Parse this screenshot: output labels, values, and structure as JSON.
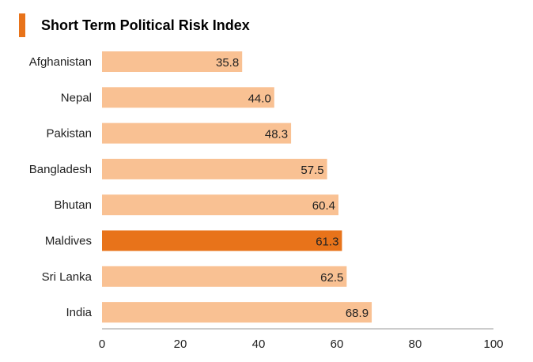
{
  "chart_data": {
    "type": "bar",
    "orientation": "horizontal",
    "title": "Short Term Political Risk Index",
    "categories": [
      "Afghanistan",
      "Nepal",
      "Pakistan",
      "Bangladesh",
      "Bhutan",
      "Maldives",
      "Sri Lanka",
      "India"
    ],
    "values": [
      35.8,
      44.0,
      48.3,
      57.5,
      60.4,
      61.3,
      62.5,
      68.9
    ],
    "value_labels": [
      "35.8",
      "44.0",
      "48.3",
      "57.5",
      "60.4",
      "61.3",
      "62.5",
      "68.9"
    ],
    "highlight": "Maldives",
    "xlim": [
      0,
      100
    ],
    "xticks": [
      "0",
      "20",
      "40",
      "60",
      "80",
      "100"
    ],
    "xlabel": "",
    "ylabel": "",
    "grid": false,
    "colors": {
      "bar": "#F9C193",
      "highlight": "#E8731A",
      "axis": "#9A9A9A"
    }
  },
  "accent_color": "#E8731A"
}
